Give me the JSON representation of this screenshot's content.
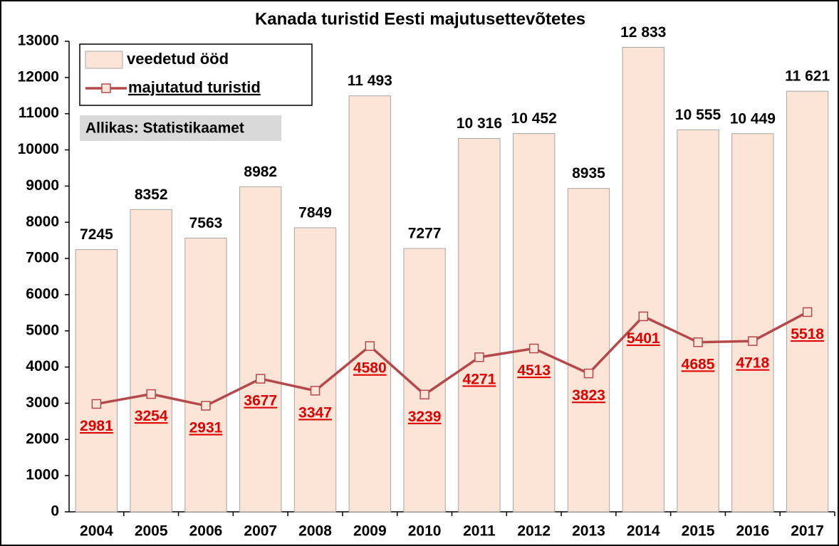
{
  "chart_data": {
    "type": "bar",
    "title": "Kanada turistid Eesti majutusettevõtetes",
    "annotation": "Allikas: Statistikaamet",
    "categories": [
      "2004",
      "2005",
      "2006",
      "2007",
      "2008",
      "2009",
      "2010",
      "2011",
      "2012",
      "2013",
      "2014",
      "2015",
      "2016",
      "2017"
    ],
    "series": [
      {
        "name": "veedetud ööd",
        "type": "bar",
        "color": "#fce4d6",
        "values": [
          7245,
          8352,
          7563,
          8982,
          7849,
          11493,
          7277,
          10316,
          10452,
          8935,
          12833,
          10555,
          10449,
          11621
        ],
        "value_labels": [
          "7245",
          "8352",
          "7563",
          "8982",
          "7849",
          "11 493",
          "7277",
          "10 316",
          "10 452",
          "8935",
          "12 833",
          "10 555",
          "10 449",
          "11 621"
        ]
      },
      {
        "name": "majutatud turistid",
        "type": "line",
        "color": "#b5484b",
        "label_color": "#e00000",
        "values": [
          2981,
          3254,
          2931,
          3677,
          3347,
          4580,
          3239,
          4271,
          4513,
          3823,
          5401,
          4685,
          4718,
          5518
        ]
      }
    ],
    "ylim": [
      0,
      13000
    ],
    "yticks": [
      0,
      1000,
      2000,
      3000,
      4000,
      5000,
      6000,
      7000,
      8000,
      9000,
      10000,
      11000,
      12000,
      13000
    ],
    "grid": false,
    "legend": "upper left"
  }
}
